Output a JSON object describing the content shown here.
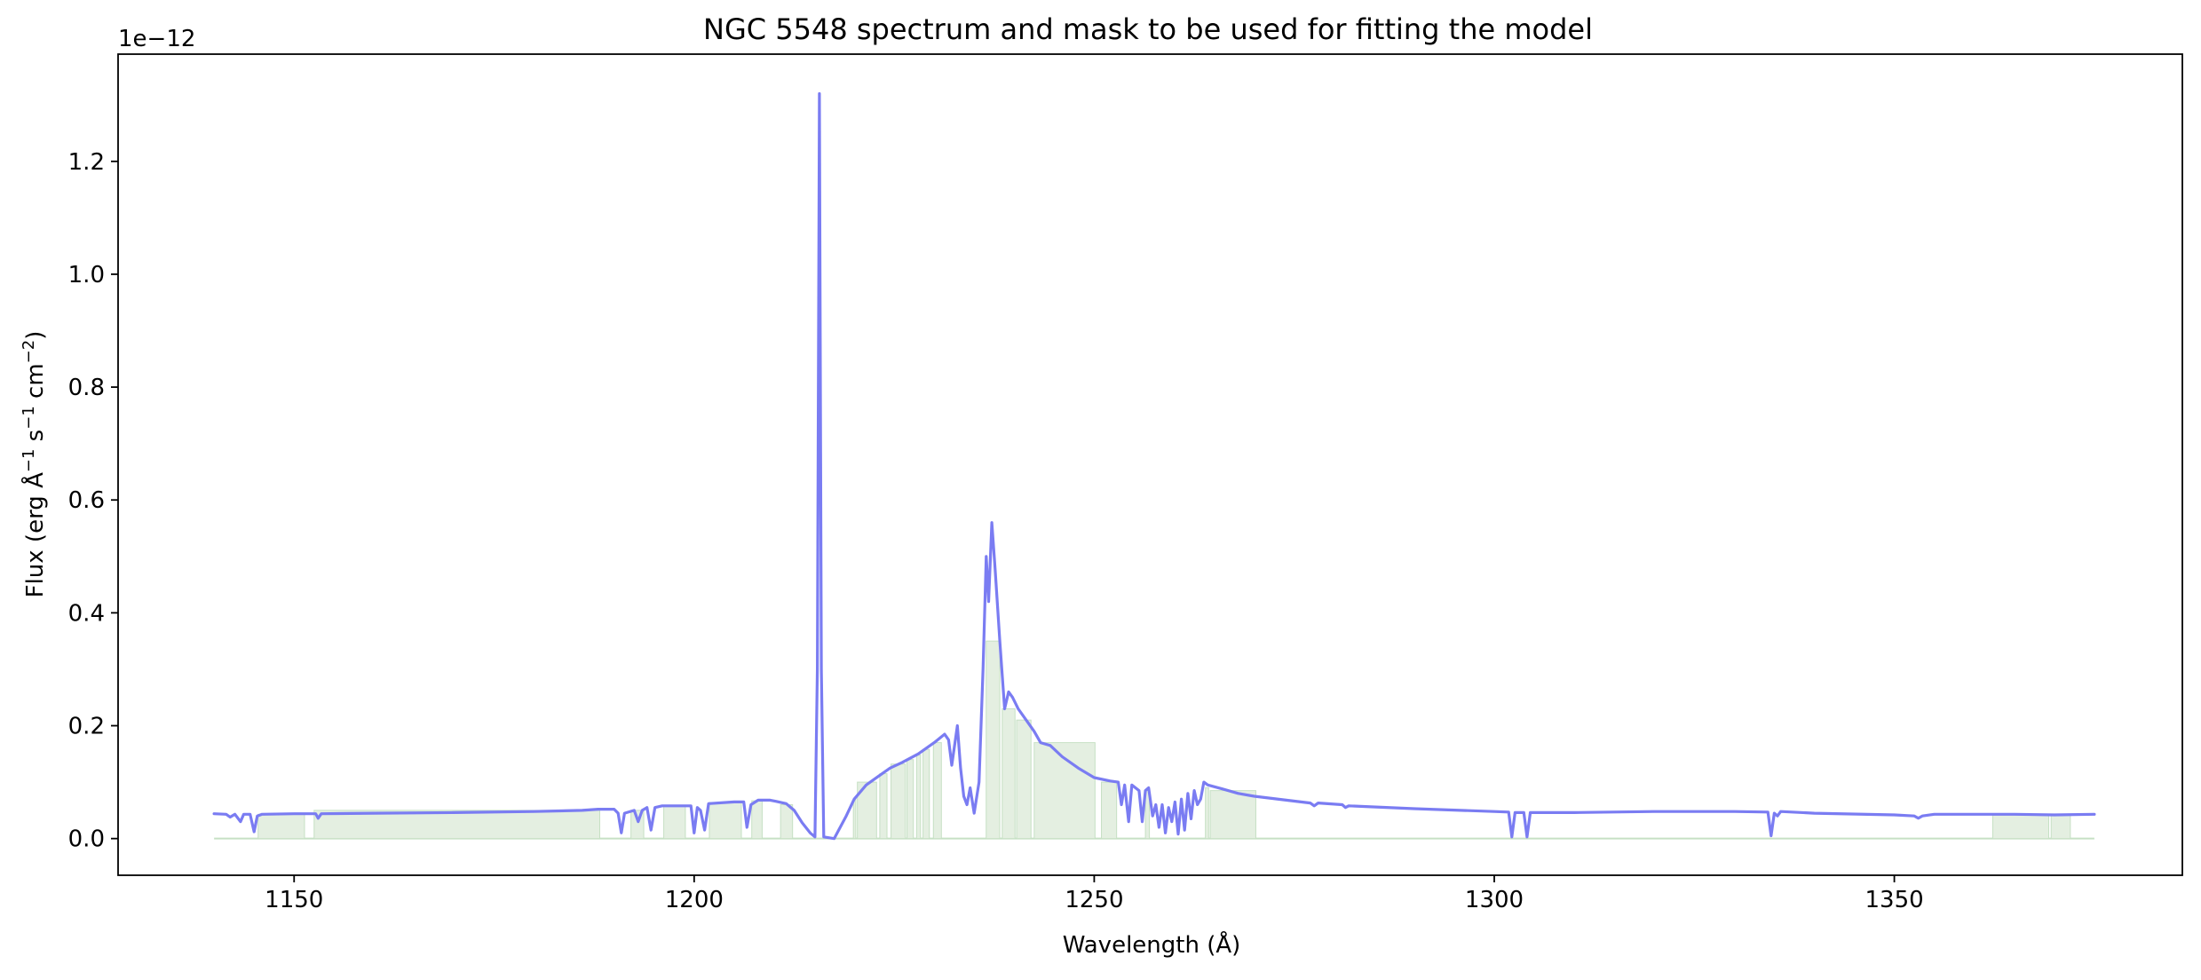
{
  "chart_data": {
    "type": "line",
    "title": "NGC 5548 spectrum and mask to be used for fitting the model",
    "xlabel": "Wavelength (Å)",
    "ylabel_parts": [
      "Flux (erg Å",
      "−1",
      " s",
      "−1",
      " cm",
      "−2",
      ")"
    ],
    "offset_text": "1e−12",
    "xlim": [
      1128,
      1386
    ],
    "ylim": [
      -0.065,
      1.39
    ],
    "x_ticks": [
      1150,
      1200,
      1250,
      1300,
      1350
    ],
    "x_tick_labels": [
      "1150",
      "1200",
      "1250",
      "1300",
      "1350"
    ],
    "y_ticks": [
      0.0,
      0.2,
      0.4,
      0.6,
      0.8,
      1.0,
      1.2
    ],
    "y_tick_labels": [
      "0.0",
      "0.2",
      "0.4",
      "0.6",
      "0.8",
      "1.0",
      "1.2"
    ],
    "colors": {
      "spectrum": "#7a7cf2",
      "mask_fill": "#e4efe1",
      "mask_edge": "#c6e0c4",
      "axes": "#000000"
    },
    "series": [
      {
        "values": [
          [
            1140,
            0.044
          ],
          [
            1141.5,
            0.043
          ],
          [
            1142,
            0.038
          ],
          [
            1142.6,
            0.043
          ],
          [
            1143.3,
            0.03
          ],
          [
            1143.7,
            0.043
          ],
          [
            1144.5,
            0.043
          ],
          [
            1145,
            0.012
          ],
          [
            1145.4,
            0.04
          ],
          [
            1146,
            0.043
          ],
          [
            1150,
            0.044
          ],
          [
            1152.7,
            0.044
          ],
          [
            1153,
            0.036
          ],
          [
            1153.4,
            0.044
          ],
          [
            1160,
            0.045
          ],
          [
            1170,
            0.046
          ],
          [
            1180,
            0.048
          ],
          [
            1186,
            0.05
          ],
          [
            1188,
            0.052
          ],
          [
            1190,
            0.052
          ],
          [
            1190.5,
            0.045
          ],
          [
            1190.9,
            0.01
          ],
          [
            1191.3,
            0.045
          ],
          [
            1192.5,
            0.05
          ],
          [
            1193,
            0.03
          ],
          [
            1193.5,
            0.05
          ],
          [
            1194.1,
            0.055
          ],
          [
            1194.6,
            0.015
          ],
          [
            1195.1,
            0.055
          ],
          [
            1196,
            0.058
          ],
          [
            1199,
            0.058
          ],
          [
            1199.6,
            0.058
          ],
          [
            1200,
            0.01
          ],
          [
            1200.4,
            0.055
          ],
          [
            1200.8,
            0.05
          ],
          [
            1201.3,
            0.015
          ],
          [
            1201.8,
            0.062
          ],
          [
            1205,
            0.065
          ],
          [
            1206.2,
            0.065
          ],
          [
            1206.6,
            0.02
          ],
          [
            1207.1,
            0.06
          ],
          [
            1208,
            0.068
          ],
          [
            1209.5,
            0.068
          ],
          [
            1210.2,
            0.066
          ],
          [
            1211.5,
            0.062
          ],
          [
            1212.5,
            0.05
          ],
          [
            1213.5,
            0.028
          ],
          [
            1214.5,
            0.01
          ],
          [
            1215.1,
            0.003
          ],
          [
            1215.4,
            0.3
          ],
          [
            1215.65,
            1.32
          ],
          [
            1215.9,
            0.3
          ],
          [
            1216.2,
            0.003
          ],
          [
            1217.5,
            0.0
          ],
          [
            1219,
            0.04
          ],
          [
            1220,
            0.07
          ],
          [
            1221.5,
            0.095
          ],
          [
            1223,
            0.11
          ],
          [
            1224.5,
            0.125
          ],
          [
            1226,
            0.135
          ],
          [
            1228,
            0.15
          ],
          [
            1230,
            0.17
          ],
          [
            1231.3,
            0.185
          ],
          [
            1231.8,
            0.175
          ],
          [
            1232.2,
            0.13
          ],
          [
            1232.9,
            0.2
          ],
          [
            1233.3,
            0.125
          ],
          [
            1233.7,
            0.075
          ],
          [
            1234.1,
            0.06
          ],
          [
            1234.5,
            0.09
          ],
          [
            1235,
            0.045
          ],
          [
            1235.6,
            0.1
          ],
          [
            1236.1,
            0.3
          ],
          [
            1236.5,
            0.5
          ],
          [
            1236.8,
            0.42
          ],
          [
            1237.2,
            0.56
          ],
          [
            1237.6,
            0.48
          ],
          [
            1238.2,
            0.35
          ],
          [
            1238.8,
            0.23
          ],
          [
            1239.3,
            0.26
          ],
          [
            1239.8,
            0.25
          ],
          [
            1240.5,
            0.23
          ],
          [
            1241.5,
            0.21
          ],
          [
            1242.5,
            0.19
          ],
          [
            1243.3,
            0.17
          ],
          [
            1244.5,
            0.165
          ],
          [
            1246,
            0.145
          ],
          [
            1248,
            0.125
          ],
          [
            1250,
            0.108
          ],
          [
            1252,
            0.102
          ],
          [
            1253,
            0.1
          ],
          [
            1253.4,
            0.06
          ],
          [
            1253.8,
            0.095
          ],
          [
            1254.3,
            0.03
          ],
          [
            1254.7,
            0.095
          ],
          [
            1255.6,
            0.085
          ],
          [
            1256,
            0.03
          ],
          [
            1256.4,
            0.085
          ],
          [
            1256.8,
            0.09
          ],
          [
            1257.3,
            0.04
          ],
          [
            1257.7,
            0.06
          ],
          [
            1258.1,
            0.02
          ],
          [
            1258.5,
            0.06
          ],
          [
            1258.9,
            0.01
          ],
          [
            1259.3,
            0.055
          ],
          [
            1259.7,
            0.03
          ],
          [
            1260.1,
            0.065
          ],
          [
            1260.5,
            0.008
          ],
          [
            1260.9,
            0.07
          ],
          [
            1261.3,
            0.015
          ],
          [
            1261.7,
            0.08
          ],
          [
            1262.1,
            0.035
          ],
          [
            1262.5,
            0.085
          ],
          [
            1262.9,
            0.06
          ],
          [
            1263.3,
            0.07
          ],
          [
            1263.7,
            0.1
          ],
          [
            1264.2,
            0.095
          ],
          [
            1266,
            0.088
          ],
          [
            1268,
            0.08
          ],
          [
            1270,
            0.075
          ],
          [
            1274,
            0.068
          ],
          [
            1277,
            0.063
          ],
          [
            1277.5,
            0.058
          ],
          [
            1278,
            0.063
          ],
          [
            1281,
            0.06
          ],
          [
            1281.4,
            0.055
          ],
          [
            1281.8,
            0.058
          ],
          [
            1290,
            0.053
          ],
          [
            1300,
            0.048
          ],
          [
            1301.8,
            0.047
          ],
          [
            1302.2,
            0.003
          ],
          [
            1302.6,
            0.046
          ],
          [
            1303.7,
            0.046
          ],
          [
            1304.1,
            0.003
          ],
          [
            1304.5,
            0.046
          ],
          [
            1310,
            0.046
          ],
          [
            1320,
            0.048
          ],
          [
            1330,
            0.048
          ],
          [
            1334.2,
            0.047
          ],
          [
            1334.6,
            0.005
          ],
          [
            1335,
            0.045
          ],
          [
            1335.4,
            0.04
          ],
          [
            1335.8,
            0.048
          ],
          [
            1340,
            0.045
          ],
          [
            1350,
            0.042
          ],
          [
            1352.5,
            0.04
          ],
          [
            1353,
            0.036
          ],
          [
            1353.5,
            0.04
          ],
          [
            1355,
            0.043
          ],
          [
            1360,
            0.043
          ],
          [
            1365,
            0.043
          ],
          [
            1370,
            0.042
          ],
          [
            1375,
            0.043
          ]
        ]
      }
    ],
    "mask_regions": [
      [
        1145.5,
        1151.3,
        0.043
      ],
      [
        1152.5,
        1188.2,
        0.05
      ],
      [
        1192.1,
        1193.7,
        0.05
      ],
      [
        1196.2,
        1198.9,
        0.058
      ],
      [
        1201.9,
        1205.9,
        0.064
      ],
      [
        1207.2,
        1208.5,
        0.067
      ],
      [
        1210.8,
        1212.3,
        0.06
      ],
      [
        1219.9,
        1220.2,
        0.07
      ],
      [
        1220.4,
        1222.8,
        0.1
      ],
      [
        1223.2,
        1224.1,
        0.115
      ],
      [
        1224.6,
        1226.4,
        0.132
      ],
      [
        1226.6,
        1227.4,
        0.14
      ],
      [
        1227.8,
        1228.3,
        0.148
      ],
      [
        1228.6,
        1229.4,
        0.158
      ],
      [
        1229.9,
        1230.9,
        0.17
      ],
      [
        1236.5,
        1238.2,
        0.35
      ],
      [
        1238.5,
        1240.1,
        0.23
      ],
      [
        1240.3,
        1242.1,
        0.21
      ],
      [
        1242.5,
        1250.1,
        0.17
      ],
      [
        1250.9,
        1252.8,
        0.1
      ],
      [
        1256.4,
        1256.9,
        0.085
      ],
      [
        1263.9,
        1264.3,
        0.09
      ],
      [
        1264.5,
        1270.2,
        0.085
      ],
      [
        1362.3,
        1369.3,
        0.043
      ],
      [
        1369.6,
        1372,
        0.043
      ]
    ]
  }
}
